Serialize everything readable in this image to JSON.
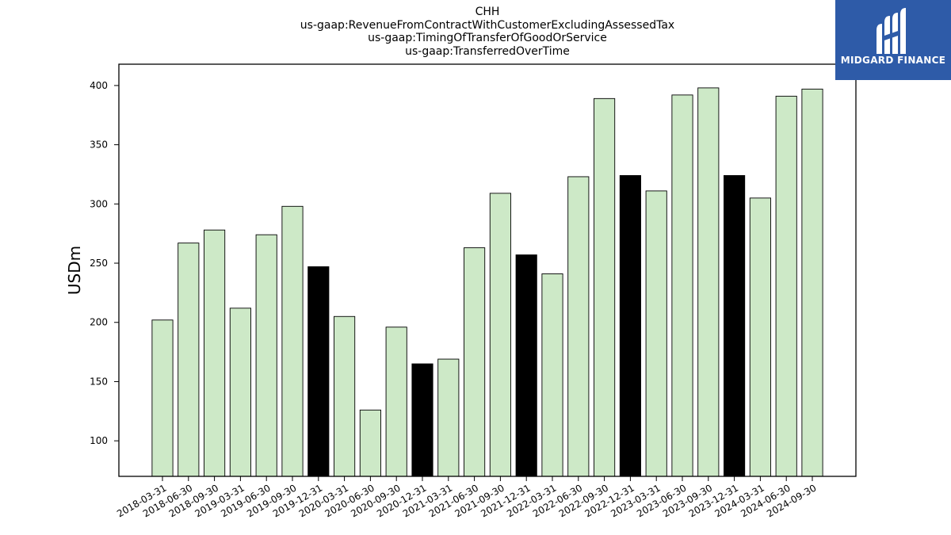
{
  "titles": [
    "CHH",
    "us-gaap:RevenueFromContractWithCustomerExcludingAssessedTax",
    "us-gaap:TimingOfTransferOfGoodOrService",
    "us-gaap:TransferredOverTime"
  ],
  "logo": {
    "text": "MIDGARD FINANCE",
    "bg_color": "#2e5ba8"
  },
  "chart_data": {
    "type": "bar",
    "title": "CHH",
    "ylabel": "USDm",
    "xlabel": "",
    "ylim": [
      70,
      418
    ],
    "yticks": [
      100,
      150,
      200,
      250,
      300,
      350,
      400
    ],
    "grid": false,
    "colors": {
      "quarter": "#cde9c7",
      "year_end": "#000000"
    },
    "categories": [
      "2018-03-31",
      "2018-06-30",
      "2018-09-30",
      "2019-03-31",
      "2019-06-30",
      "2019-09-30",
      "2019-12-31",
      "2020-03-31",
      "2020-06-30",
      "2020-09-30",
      "2020-12-31",
      "2021-03-31",
      "2021-06-30",
      "2021-09-30",
      "2021-12-31",
      "2022-03-31",
      "2022-06-30",
      "2022-09-30",
      "2022-12-31",
      "2023-03-31",
      "2023-06-30",
      "2023-09-30",
      "2023-12-31",
      "2024-03-31",
      "2024-06-30",
      "2024-09-30"
    ],
    "values": [
      202,
      267,
      278,
      212,
      274,
      298,
      247,
      205,
      126,
      196,
      165,
      169,
      263,
      309,
      257,
      241,
      323,
      389,
      324,
      311,
      392,
      398,
      324,
      305,
      391,
      397
    ],
    "highlight": [
      "2019-12-31",
      "2020-12-31",
      "2021-12-31",
      "2022-12-31",
      "2023-12-31"
    ]
  }
}
